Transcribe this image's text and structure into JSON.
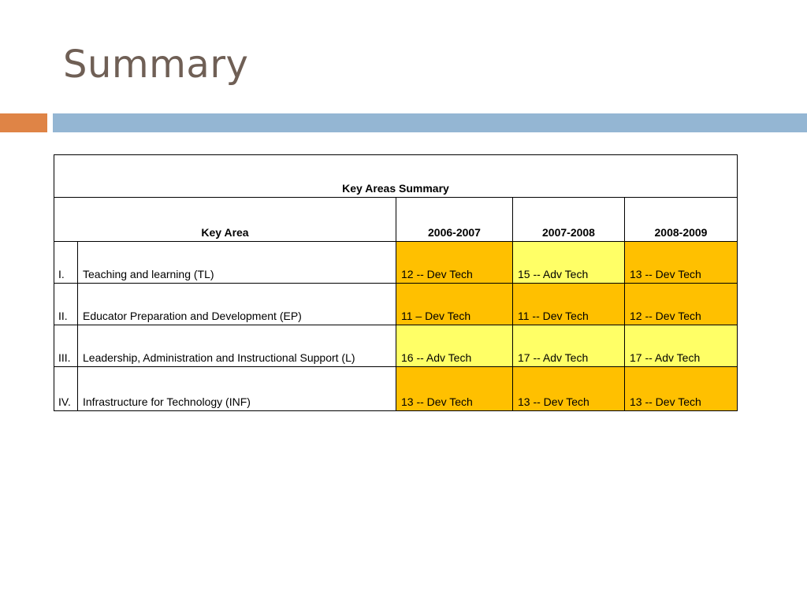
{
  "slide": {
    "title": "Summary"
  },
  "colors": {
    "dev_tech": "#ffc000",
    "adv_tech": "#ffff66",
    "title_text": "#6f5f55",
    "accent_orange": "#df8446",
    "accent_blue": "#94b6d3"
  },
  "table": {
    "caption": "Key Areas Summary",
    "headers": {
      "key_area": "Key Area",
      "years": [
        "2006-2007",
        "2007-2008",
        "2008-2009"
      ]
    },
    "rows": [
      {
        "num": "I.",
        "area": "Teaching and learning (TL)",
        "values": [
          "12 -- Dev Tech",
          "15 -- Adv Tech",
          "13 -- Dev Tech"
        ]
      },
      {
        "num": "II.",
        "area": "Educator Preparation and Development (EP)",
        "values": [
          "11 – Dev Tech",
          "11 -- Dev Tech",
          "12 -- Dev Tech"
        ]
      },
      {
        "num": "III.",
        "area": "Leadership, Administration and Instructional Support (L)",
        "values": [
          "16 -- Adv Tech",
          "17 -- Adv Tech",
          "17 -- Adv Tech"
        ]
      },
      {
        "num": "IV.",
        "area": "Infrastructure for Technology (INF)",
        "values": [
          "13 -- Dev Tech",
          "13 -- Dev Tech",
          "13 -- Dev Tech"
        ]
      }
    ]
  }
}
